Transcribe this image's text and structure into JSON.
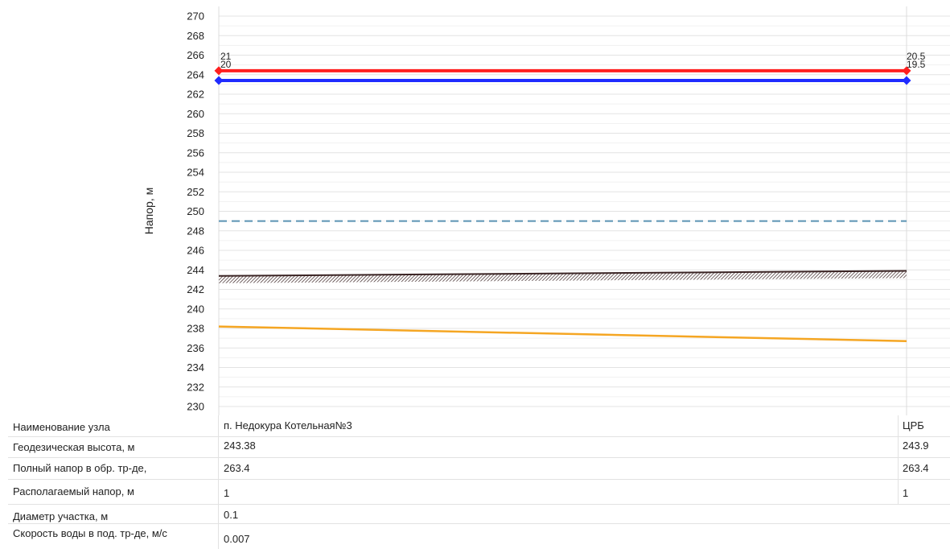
{
  "chart_data": {
    "type": "line",
    "ylabel": "Напор, м",
    "ylim": [
      230,
      270
    ],
    "y_ticks": [
      230,
      232,
      234,
      236,
      238,
      240,
      242,
      244,
      246,
      248,
      250,
      252,
      254,
      256,
      258,
      260,
      262,
      264,
      266,
      268,
      270
    ],
    "grid": true,
    "x_nodes": [
      "п. Недокура Котельная№3",
      "ЦРБ"
    ],
    "series": [
      {
        "key": "supply",
        "values": [
          264.4,
          264.4
        ],
        "color": "#ff1f1f",
        "style": "solid-thick",
        "markers": true
      },
      {
        "key": "return",
        "values": [
          263.4,
          263.4
        ],
        "color": "#1f2bff",
        "style": "solid-thick",
        "markers": true
      },
      {
        "key": "dashed",
        "values": [
          249,
          249
        ],
        "color": "#5b93b3",
        "style": "dashed"
      },
      {
        "key": "ground",
        "values": [
          243.38,
          243.9
        ],
        "color": "#3a2424",
        "style": "ground-hatch"
      },
      {
        "key": "orange",
        "values": [
          238.2,
          236.7
        ],
        "color": "#f5a623",
        "style": "solid"
      }
    ],
    "annotations": [
      {
        "node": 0,
        "top": "21",
        "bottom": "20"
      },
      {
        "node": 1,
        "top": "20.5",
        "bottom": "19.5"
      }
    ]
  },
  "table": {
    "rows": [
      {
        "label": "Наименование узла",
        "start": "п. Недокура Котельная№3",
        "end": "ЦРБ"
      },
      {
        "label": "Геодезическая высота, м",
        "start": "243.38",
        "end": "243.9"
      },
      {
        "label": "Полный напор в обр. тр-де,",
        "start": "263.4",
        "end": "263.4"
      },
      {
        "label": "Располагаемый напор, м",
        "start": "1",
        "end": "1"
      },
      {
        "label": "Диаметр участка, м",
        "start": "0.1",
        "end": ""
      },
      {
        "label": "Скорость воды в под. тр-де, м/с",
        "start": "0.007",
        "end": ""
      }
    ]
  }
}
